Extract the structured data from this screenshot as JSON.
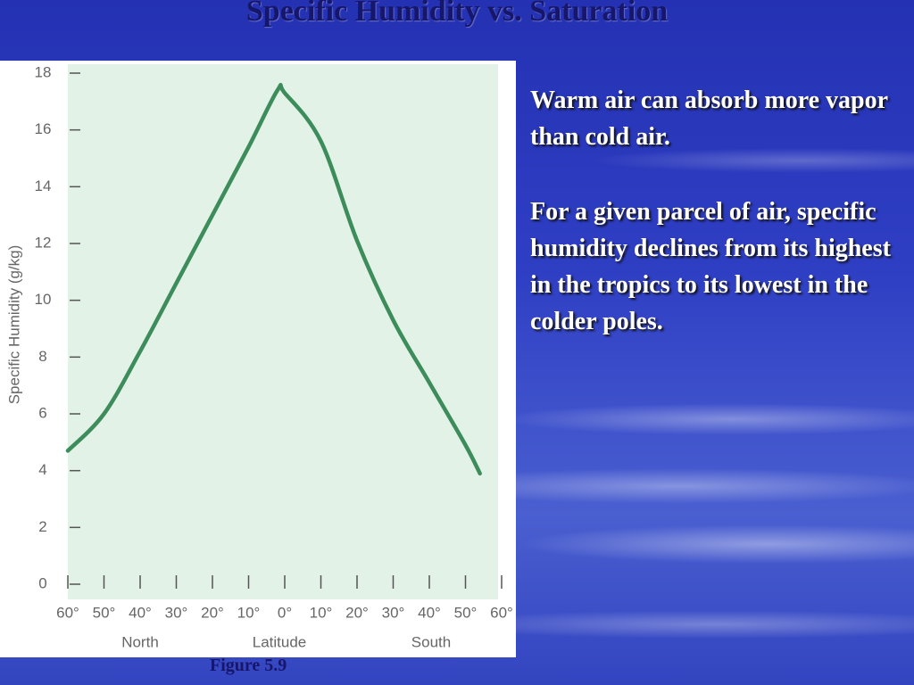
{
  "slide": {
    "title": "Specific Humidity vs. Saturation",
    "paragraphs": [
      "Warm air can absorb more vapor than cold air.",
      "For a given parcel of air, specific humidity declines from its highest in the tropics to its lowest in the colder poles."
    ],
    "caption": "Figure 5.9"
  },
  "chart_data": {
    "type": "line",
    "y_label": "Specific Humidity (g/kg)",
    "x_label": "Latitude",
    "annotations": [
      "North",
      "South"
    ],
    "x": [
      60,
      50,
      40,
      30,
      20,
      10,
      2,
      0,
      -10,
      -20,
      -30,
      -40,
      -50,
      -54
    ],
    "series": [
      {
        "name": "Specific humidity",
        "color": "#3d8c5c",
        "values": [
          4.7,
          6.0,
          8.2,
          10.6,
          13.0,
          15.4,
          17.4,
          17.3,
          15.6,
          12.1,
          9.3,
          7.1,
          4.9,
          3.9
        ]
      }
    ],
    "xlim": [
      60,
      -60
    ],
    "xticks": [
      {
        "value": 60,
        "label": "60°"
      },
      {
        "value": 50,
        "label": "50°"
      },
      {
        "value": 40,
        "label": "40°"
      },
      {
        "value": 30,
        "label": "30°"
      },
      {
        "value": 20,
        "label": "20°"
      },
      {
        "value": 10,
        "label": "10°"
      },
      {
        "value": 0,
        "label": "0°"
      },
      {
        "value": -10,
        "label": "10°"
      },
      {
        "value": -20,
        "label": "20°"
      },
      {
        "value": -30,
        "label": "30°"
      },
      {
        "value": -40,
        "label": "40°"
      },
      {
        "value": -50,
        "label": "50°"
      },
      {
        "value": -60,
        "label": "60°"
      }
    ],
    "ylim": [
      0,
      18
    ],
    "yticks": [
      0,
      2,
      4,
      6,
      8,
      10,
      12,
      14,
      16,
      18
    ],
    "grid": false
  }
}
